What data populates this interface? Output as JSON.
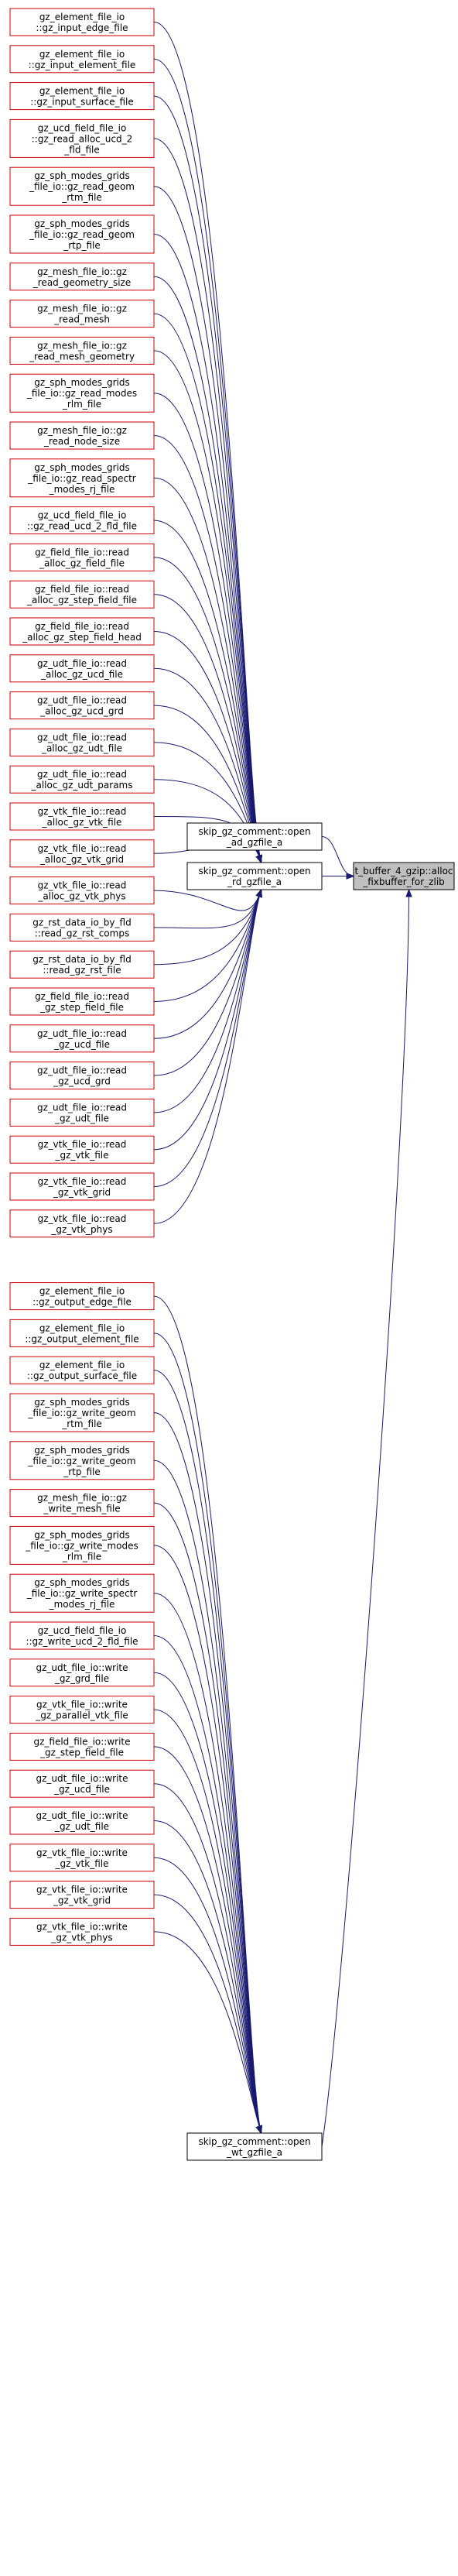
{
  "colors": {
    "caller_border": "#cc0000",
    "mid_border": "#000000",
    "root_fill": "#bfbfbf",
    "edge": "#191970",
    "background": "#ffffff"
  },
  "root": {
    "lines": [
      "t_buffer_4_gzip::alloc",
      "_fixbuffer_for_zlib"
    ]
  },
  "mids": [
    {
      "key": "ad",
      "lines": [
        "skip_gz_comment::open",
        "_ad_gzfile_a"
      ]
    },
    {
      "key": "rd",
      "lines": [
        "skip_gz_comment::open",
        "_rd_gzfile_a"
      ]
    },
    {
      "key": "wt",
      "lines": [
        "skip_gz_comment::open",
        "_wt_gzfile_a"
      ]
    }
  ],
  "callers": [
    {
      "target": "rd",
      "lines": [
        "gz_element_file_io",
        "::gz_input_edge_file"
      ]
    },
    {
      "target": "rd",
      "lines": [
        "gz_element_file_io",
        "::gz_input_element_file"
      ]
    },
    {
      "target": "rd",
      "lines": [
        "gz_element_file_io",
        "::gz_input_surface_file"
      ]
    },
    {
      "target": "rd",
      "lines": [
        "gz_ucd_field_file_io",
        "::gz_read_alloc_ucd_2",
        "_fld_file"
      ]
    },
    {
      "target": "rd",
      "lines": [
        "gz_sph_modes_grids",
        "_file_io::gz_read_geom",
        "_rtm_file"
      ]
    },
    {
      "target": "rd",
      "lines": [
        "gz_sph_modes_grids",
        "_file_io::gz_read_geom",
        "_rtp_file"
      ]
    },
    {
      "target": "rd",
      "lines": [
        "gz_mesh_file_io::gz",
        "_read_geometry_size"
      ]
    },
    {
      "target": "rd",
      "lines": [
        "gz_mesh_file_io::gz",
        "_read_mesh"
      ]
    },
    {
      "target": "rd",
      "lines": [
        "gz_mesh_file_io::gz",
        "_read_mesh_geometry"
      ]
    },
    {
      "target": "rd",
      "lines": [
        "gz_sph_modes_grids",
        "_file_io::gz_read_modes",
        "_rlm_file"
      ]
    },
    {
      "target": "rd",
      "lines": [
        "gz_mesh_file_io::gz",
        "_read_node_size"
      ]
    },
    {
      "target": "rd",
      "lines": [
        "gz_sph_modes_grids",
        "_file_io::gz_read_spectr",
        "_modes_rj_file"
      ]
    },
    {
      "target": "rd",
      "lines": [
        "gz_ucd_field_file_io",
        "::gz_read_ucd_2_fld_file"
      ]
    },
    {
      "target": "rd",
      "lines": [
        "gz_field_file_io::read",
        "_alloc_gz_field_file"
      ]
    },
    {
      "target": "rd",
      "lines": [
        "gz_field_file_io::read",
        "_alloc_gz_step_field_file"
      ]
    },
    {
      "target": "rd",
      "lines": [
        "gz_field_file_io::read",
        "_alloc_gz_step_field_head"
      ]
    },
    {
      "target": "rd",
      "lines": [
        "gz_udt_file_io::read",
        "_alloc_gz_ucd_file"
      ]
    },
    {
      "target": "rd",
      "lines": [
        "gz_udt_file_io::read",
        "_alloc_gz_ucd_grd"
      ]
    },
    {
      "target": "rd",
      "lines": [
        "gz_udt_file_io::read",
        "_alloc_gz_udt_file"
      ]
    },
    {
      "target": "rd",
      "lines": [
        "gz_udt_file_io::read",
        "_alloc_gz_udt_params"
      ]
    },
    {
      "target": "rd",
      "lines": [
        "gz_vtk_file_io::read",
        "_alloc_gz_vtk_file"
      ]
    },
    {
      "target": "rd",
      "lines": [
        "gz_vtk_file_io::read",
        "_alloc_gz_vtk_grid"
      ]
    },
    {
      "target": "rd",
      "lines": [
        "gz_vtk_file_io::read",
        "_alloc_gz_vtk_phys"
      ]
    },
    {
      "target": "rd",
      "lines": [
        "gz_rst_data_io_by_fld",
        "::read_gz_rst_comps"
      ]
    },
    {
      "target": "rd",
      "lines": [
        "gz_rst_data_io_by_fld",
        "::read_gz_rst_file"
      ]
    },
    {
      "target": "rd",
      "lines": [
        "gz_field_file_io::read",
        "_gz_step_field_file"
      ]
    },
    {
      "target": "rd",
      "lines": [
        "gz_udt_file_io::read",
        "_gz_ucd_file"
      ]
    },
    {
      "target": "rd",
      "lines": [
        "gz_udt_file_io::read",
        "_gz_ucd_grd"
      ]
    },
    {
      "target": "rd",
      "lines": [
        "gz_udt_file_io::read",
        "_gz_udt_file"
      ]
    },
    {
      "target": "rd",
      "lines": [
        "gz_vtk_file_io::read",
        "_gz_vtk_file"
      ]
    },
    {
      "target": "rd",
      "lines": [
        "gz_vtk_file_io::read",
        "_gz_vtk_grid"
      ]
    },
    {
      "target": "rd",
      "lines": [
        "gz_vtk_file_io::read",
        "_gz_vtk_phys"
      ]
    },
    {
      "target": "wt",
      "lines": [
        "gz_element_file_io",
        "::gz_output_edge_file"
      ]
    },
    {
      "target": "wt",
      "lines": [
        "gz_element_file_io",
        "::gz_output_element_file"
      ]
    },
    {
      "target": "wt",
      "lines": [
        "gz_element_file_io",
        "::gz_output_surface_file"
      ]
    },
    {
      "target": "wt",
      "lines": [
        "gz_sph_modes_grids",
        "_file_io::gz_write_geom",
        "_rtm_file"
      ]
    },
    {
      "target": "wt",
      "lines": [
        "gz_sph_modes_grids",
        "_file_io::gz_write_geom",
        "_rtp_file"
      ]
    },
    {
      "target": "wt",
      "lines": [
        "gz_mesh_file_io::gz",
        "_write_mesh_file"
      ]
    },
    {
      "target": "wt",
      "lines": [
        "gz_sph_modes_grids",
        "_file_io::gz_write_modes",
        "_rlm_file"
      ]
    },
    {
      "target": "wt",
      "lines": [
        "gz_sph_modes_grids",
        "_file_io::gz_write_spectr",
        "_modes_rj_file"
      ]
    },
    {
      "target": "wt",
      "lines": [
        "gz_ucd_field_file_io",
        "::gz_write_ucd_2_fld_file"
      ]
    },
    {
      "target": "wt",
      "lines": [
        "gz_udt_file_io::write",
        "_gz_grd_file"
      ]
    },
    {
      "target": "wt",
      "lines": [
        "gz_vtk_file_io::write",
        "_gz_parallel_vtk_file"
      ]
    },
    {
      "target": "wt",
      "lines": [
        "gz_field_file_io::write",
        "_gz_step_field_file"
      ]
    },
    {
      "target": "wt",
      "lines": [
        "gz_udt_file_io::write",
        "_gz_ucd_file"
      ]
    },
    {
      "target": "wt",
      "lines": [
        "gz_udt_file_io::write",
        "_gz_udt_file"
      ]
    },
    {
      "target": "wt",
      "lines": [
        "gz_vtk_file_io::write",
        "_gz_vtk_file"
      ]
    },
    {
      "target": "wt",
      "lines": [
        "gz_vtk_file_io::write",
        "_gz_vtk_grid"
      ]
    },
    {
      "target": "wt",
      "lines": [
        "gz_vtk_file_io::write",
        "_gz_vtk_phys"
      ]
    }
  ]
}
